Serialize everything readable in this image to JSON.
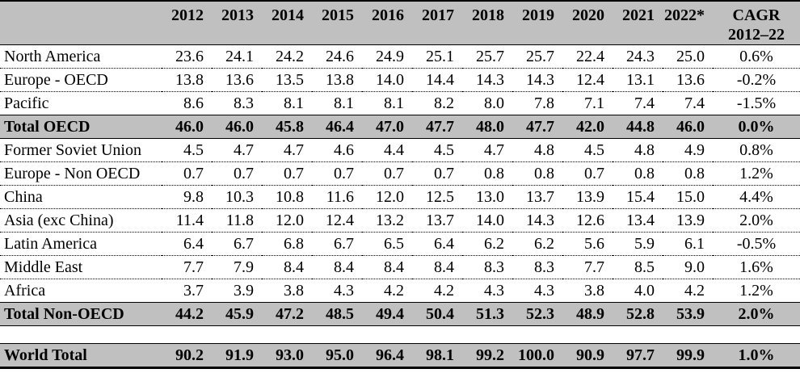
{
  "colors": {
    "header_bg": "#c0c0c0",
    "total_row_bg": "#c0c0c0",
    "border": "#000000",
    "text": "#000000"
  },
  "chart_data": {
    "type": "table",
    "title": "",
    "header": {
      "region_label": "",
      "years": [
        "2012",
        "2013",
        "2014",
        "2015",
        "2016",
        "2017",
        "2018",
        "2019",
        "2020",
        "2021",
        "2022*"
      ],
      "cagr_line1": "CAGR",
      "cagr_line2": "2012–22"
    },
    "rows": [
      {
        "style": "data",
        "label": "North America",
        "values": [
          "23.6",
          "24.1",
          "24.2",
          "24.6",
          "24.9",
          "25.1",
          "25.7",
          "25.7",
          "22.4",
          "24.3",
          "25.0"
        ],
        "cagr": "0.6%"
      },
      {
        "style": "data",
        "label": "Europe - OECD",
        "values": [
          "13.8",
          "13.6",
          "13.5",
          "13.8",
          "14.0",
          "14.4",
          "14.3",
          "14.3",
          "12.4",
          "13.1",
          "13.6"
        ],
        "cagr": "-0.2%"
      },
      {
        "style": "data",
        "label": "Pacific",
        "values": [
          "8.6",
          "8.3",
          "8.1",
          "8.1",
          "8.1",
          "8.2",
          "8.0",
          "7.8",
          "7.1",
          "7.4",
          "7.4"
        ],
        "cagr": "-1.5%"
      },
      {
        "style": "total",
        "label": "Total OECD",
        "values": [
          "46.0",
          "46.0",
          "45.8",
          "46.4",
          "47.0",
          "47.7",
          "48.0",
          "47.7",
          "42.0",
          "44.8",
          "46.0"
        ],
        "cagr": "0.0%"
      },
      {
        "style": "data",
        "label": "Former Soviet Union",
        "values": [
          "4.5",
          "4.7",
          "4.7",
          "4.6",
          "4.4",
          "4.5",
          "4.7",
          "4.8",
          "4.5",
          "4.8",
          "4.9"
        ],
        "cagr": "0.8%"
      },
      {
        "style": "data",
        "label": "Europe - Non OECD",
        "values": [
          "0.7",
          "0.7",
          "0.7",
          "0.7",
          "0.7",
          "0.7",
          "0.8",
          "0.8",
          "0.7",
          "0.8",
          "0.8"
        ],
        "cagr": "1.2%"
      },
      {
        "style": "data",
        "label": "China",
        "values": [
          "9.8",
          "10.3",
          "10.8",
          "11.6",
          "12.0",
          "12.5",
          "13.0",
          "13.7",
          "13.9",
          "15.4",
          "15.0"
        ],
        "cagr": "4.4%"
      },
      {
        "style": "data",
        "label": "Asia (exc China)",
        "values": [
          "11.4",
          "11.8",
          "12.0",
          "12.4",
          "13.2",
          "13.7",
          "14.0",
          "14.3",
          "12.6",
          "13.4",
          "13.9"
        ],
        "cagr": "2.0%"
      },
      {
        "style": "data",
        "label": "Latin America",
        "values": [
          "6.4",
          "6.7",
          "6.8",
          "6.7",
          "6.5",
          "6.4",
          "6.2",
          "6.2",
          "5.6",
          "5.9",
          "6.1"
        ],
        "cagr": "-0.5%"
      },
      {
        "style": "data",
        "label": "Middle East",
        "values": [
          "7.7",
          "7.9",
          "8.4",
          "8.4",
          "8.4",
          "8.4",
          "8.3",
          "8.3",
          "7.7",
          "8.5",
          "9.0"
        ],
        "cagr": "1.6%"
      },
      {
        "style": "data",
        "label": "Africa",
        "values": [
          "3.7",
          "3.9",
          "3.8",
          "4.3",
          "4.2",
          "4.2",
          "4.3",
          "4.3",
          "3.8",
          "4.0",
          "4.2"
        ],
        "cagr": "1.2%"
      },
      {
        "style": "total",
        "label": "Total Non-OECD",
        "values": [
          "44.2",
          "45.9",
          "47.2",
          "48.5",
          "49.4",
          "50.4",
          "51.3",
          "52.3",
          "48.9",
          "52.8",
          "53.9"
        ],
        "cagr": "2.0%"
      },
      {
        "style": "spacer"
      },
      {
        "style": "grand",
        "label": "World Total",
        "values": [
          "90.2",
          "91.9",
          "93.0",
          "95.0",
          "96.4",
          "98.1",
          "99.2",
          "100.0",
          "90.9",
          "97.7",
          "99.9"
        ],
        "cagr": "1.0%"
      }
    ]
  }
}
